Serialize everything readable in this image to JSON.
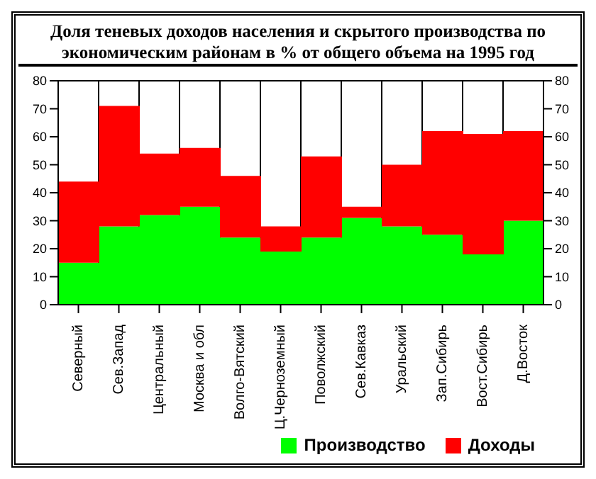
{
  "chart_data": {
    "type": "bar",
    "title": "Доля теневых доходов населения и скрытого производства по экономическим районам в % от общего объема на 1995 год",
    "categories": [
      "Северный",
      "Сев.Запад",
      "Центральный",
      "Москва и обл",
      "Волго-Вятский",
      "Ц.Черноземный",
      "Поволжский",
      "Сев.Кавказ",
      "Уральский",
      "Зап.Сибирь",
      "Вост.Сибирь",
      "Д.Восток"
    ],
    "series": [
      {
        "name": "Производство",
        "color": "#00ff00",
        "values": [
          15,
          28,
          32,
          35,
          24,
          19,
          24,
          31,
          28,
          25,
          18,
          30
        ]
      },
      {
        "name": "Доходы",
        "color": "#ff0000",
        "values": [
          29,
          43,
          22,
          21,
          22,
          9,
          29,
          4,
          22,
          37,
          43,
          32
        ]
      }
    ],
    "stacked": true,
    "ylim": [
      0,
      80
    ],
    "yticks": [
      0,
      10,
      20,
      30,
      40,
      50,
      60,
      70,
      80
    ],
    "y2lim": [
      0,
      80
    ],
    "y2ticks": [
      0,
      10,
      20,
      30,
      40,
      50,
      60,
      70,
      80
    ],
    "grid": true,
    "legend": "bottom right"
  }
}
